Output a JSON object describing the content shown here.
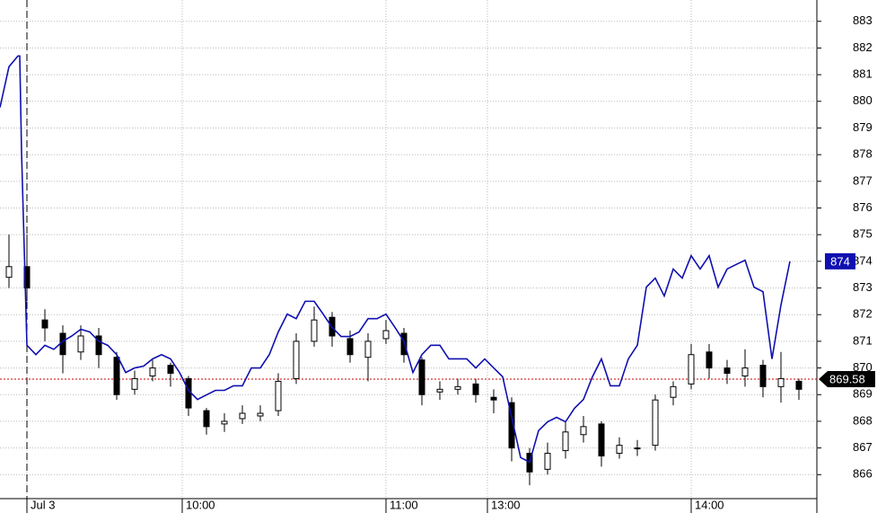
{
  "chart_data": {
    "type": "candlestick",
    "xlim": [
      0,
      91
    ],
    "ylim": [
      865.1,
      883.8
    ],
    "xticks": [
      {
        "value": 3,
        "label": "Jul 3"
      },
      {
        "value": 20.3,
        "label": "10:00"
      },
      {
        "value": 43,
        "label": "11:00"
      },
      {
        "value": 54.3,
        "label": "13:00"
      },
      {
        "value": 77,
        "label": "14:00"
      }
    ],
    "yticks": [
      866,
      867,
      868,
      869,
      870,
      871,
      872,
      873,
      874,
      875,
      876,
      877,
      878,
      879,
      880,
      881,
      882,
      883
    ],
    "grid": true,
    "reference_line": {
      "value": 869.58,
      "color": "#cc0000"
    },
    "candles": {
      "color": "#000000",
      "x": [
        1,
        3,
        5,
        7,
        9,
        11,
        13,
        15,
        17,
        19,
        21,
        23,
        25,
        27,
        29,
        31,
        33,
        35,
        37,
        39,
        41,
        43,
        45,
        47,
        49,
        51,
        53,
        55,
        57,
        59,
        61,
        63,
        65,
        67,
        69,
        71,
        73,
        75,
        77,
        79,
        81,
        83,
        85,
        87,
        89
      ],
      "open": [
        873.4,
        873.8,
        871.8,
        871.3,
        870.6,
        871.2,
        870.4,
        869.2,
        869.7,
        870.1,
        869.6,
        868.4,
        867.9,
        868.1,
        868.2,
        868.4,
        869.6,
        871.0,
        871.9,
        871.1,
        870.4,
        871.1,
        871.3,
        870.3,
        869.1,
        869.2,
        869.4,
        868.9,
        868.7,
        866.8,
        866.2,
        866.9,
        867.5,
        867.9,
        866.8,
        867.0,
        867.1,
        868.9,
        869.4,
        870.6,
        870.0,
        869.7,
        870.1,
        869.3,
        869.5
      ],
      "high": [
        875.0,
        875.0,
        872.2,
        871.6,
        871.6,
        871.5,
        870.6,
        869.9,
        870.3,
        870.2,
        869.7,
        868.5,
        868.3,
        868.6,
        868.6,
        869.8,
        871.3,
        872.3,
        872.1,
        871.4,
        871.3,
        871.8,
        871.5,
        870.4,
        869.5,
        869.6,
        869.6,
        869.2,
        868.9,
        867.0,
        867.2,
        868.0,
        868.2,
        868.0,
        867.4,
        867.3,
        869.0,
        869.5,
        870.9,
        870.9,
        870.3,
        870.7,
        870.3,
        870.6,
        869.6
      ],
      "low": [
        873.0,
        872.5,
        871.0,
        869.8,
        870.3,
        870.0,
        868.8,
        869.0,
        869.5,
        869.3,
        868.2,
        867.5,
        867.6,
        867.9,
        868.0,
        868.2,
        869.4,
        870.8,
        870.8,
        870.2,
        869.5,
        870.9,
        870.2,
        868.6,
        868.8,
        869.0,
        868.7,
        868.3,
        866.5,
        865.6,
        866.0,
        866.6,
        867.2,
        866.3,
        866.6,
        866.7,
        866.9,
        868.6,
        869.2,
        869.6,
        869.4,
        869.3,
        868.9,
        868.7,
        868.8
      ],
      "close": [
        873.8,
        873.0,
        871.5,
        870.5,
        871.2,
        870.5,
        869.0,
        869.6,
        870.0,
        869.8,
        868.5,
        867.8,
        868.0,
        868.3,
        868.3,
        869.5,
        871.0,
        871.8,
        871.2,
        870.5,
        871.0,
        871.4,
        870.5,
        869.0,
        869.2,
        869.3,
        869.0,
        868.8,
        867.0,
        866.1,
        866.8,
        867.6,
        867.8,
        866.7,
        867.1,
        867.0,
        868.8,
        869.3,
        870.5,
        870.0,
        869.8,
        870.0,
        869.3,
        869.6,
        869.2
      ]
    },
    "series": [
      {
        "color": "#1010b0",
        "last_label": "874",
        "x": [
          0,
          1,
          2,
          2.2,
          2.4,
          3,
          4,
          5,
          6,
          7,
          8,
          9,
          10,
          11,
          12,
          13,
          14,
          15,
          16,
          17,
          18,
          19,
          20,
          21,
          22,
          23,
          24,
          25,
          26,
          27,
          28,
          29,
          30,
          31,
          32,
          33,
          34,
          35,
          36,
          37,
          38,
          39,
          40,
          41,
          42,
          43,
          44,
          45,
          46,
          47,
          48,
          49,
          50,
          51,
          52,
          53,
          54,
          55,
          56,
          57,
          58,
          59,
          60,
          61,
          62,
          63,
          64,
          65,
          66,
          67,
          68,
          69,
          70,
          71,
          72,
          73,
          74,
          75,
          76,
          77,
          78,
          79,
          80,
          81,
          82,
          83,
          84,
          85,
          86,
          87,
          88
        ],
        "values": [
          879.77,
          881.3,
          881.7,
          881.7,
          878.1,
          870.85,
          870.5,
          870.85,
          870.7,
          871.0,
          871.2,
          871.45,
          871.35,
          871.0,
          870.85,
          870.5,
          869.83,
          870.0,
          870.07,
          870.34,
          870.5,
          870.34,
          869.83,
          869.16,
          868.82,
          868.99,
          869.16,
          869.16,
          869.33,
          869.33,
          870.0,
          870.0,
          870.5,
          871.35,
          872.02,
          871.85,
          872.5,
          872.5,
          872.02,
          871.52,
          871.18,
          871.18,
          871.35,
          871.85,
          871.85,
          872.02,
          871.52,
          871.0,
          869.83,
          870.5,
          870.85,
          870.85,
          870.34,
          870.34,
          870.34,
          870.0,
          870.34,
          870.0,
          869.67,
          868.15,
          866.64,
          866.47,
          867.65,
          867.98,
          868.15,
          867.98,
          868.49,
          868.82,
          869.67,
          870.34,
          869.33,
          869.33,
          870.34,
          870.85,
          873.03,
          873.37,
          872.7,
          873.71,
          873.37,
          874.21,
          873.71,
          874.21,
          873.03,
          873.71,
          873.88,
          874.04,
          873.03,
          872.86,
          870.34,
          872.36,
          874.0
        ]
      }
    ]
  }
}
